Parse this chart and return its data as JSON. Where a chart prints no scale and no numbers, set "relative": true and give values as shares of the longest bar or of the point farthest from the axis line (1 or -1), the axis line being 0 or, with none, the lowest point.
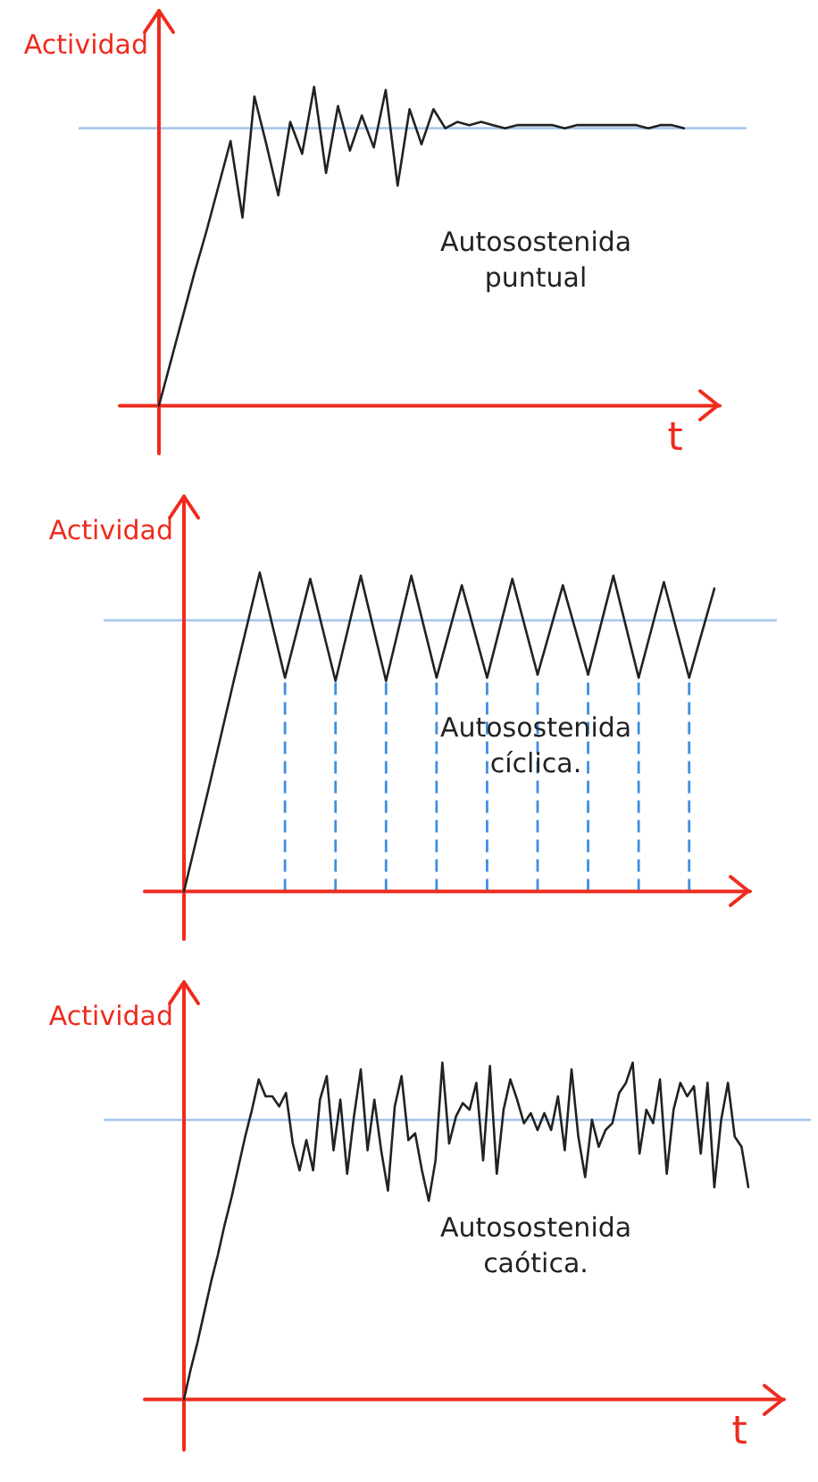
{
  "chart_data": [
    {
      "type": "line",
      "relative": true,
      "ylabel": "Actividad",
      "xlabel": "t",
      "categories": [
        null,
        null,
        null,
        null,
        null,
        null,
        null,
        null,
        null,
        null,
        null,
        null,
        null,
        null,
        null,
        null,
        null,
        null,
        null,
        null,
        null,
        null,
        null,
        null,
        null,
        null,
        null,
        null,
        null,
        null,
        null,
        null,
        null,
        null,
        null,
        null,
        null,
        null,
        null,
        null,
        null,
        null,
        null,
        null,
        null
      ],
      "series": [
        {
          "color": "#222222",
          "values": [
            0,
            0.14,
            0.28,
            0.42,
            0.55,
            0.69,
            0.83,
            0.59,
            0.97,
            0.82,
            0.66,
            0.89,
            0.79,
            1,
            0.73,
            0.94,
            0.8,
            0.91,
            0.81,
            0.99,
            0.69,
            0.93,
            0.82,
            0.93,
            0.87,
            0.89,
            0.88,
            0.89,
            0.88,
            0.87,
            0.88,
            0.88,
            0.88,
            0.88,
            0.87,
            0.88,
            0.88,
            0.88,
            0.88,
            0.88,
            0.88,
            0.87,
            0.88,
            0.88,
            0.87
          ]
        }
      ],
      "ref_lines": [
        {
          "axis": "y",
          "value": 0.87,
          "color": "#a9c9ee"
        }
      ],
      "annotations": [
        "Autosostenida puntual"
      ]
    },
    {
      "type": "line",
      "relative": true,
      "ylabel": "Actividad",
      "categories": [
        null,
        null,
        null,
        null,
        null,
        null,
        null,
        null,
        null,
        null,
        null,
        null,
        null,
        null,
        null,
        null,
        null,
        null,
        null,
        null,
        null,
        null
      ],
      "series": [
        {
          "color": "#222222",
          "values": [
            0,
            0.33,
            0.67,
            1,
            0.67,
            0.98,
            0.66,
            0.99,
            0.66,
            0.99,
            0.67,
            0.96,
            0.67,
            0.98,
            0.68,
            0.96,
            0.68,
            0.99,
            0.67,
            0.97,
            0.67,
            0.95
          ]
        }
      ],
      "ref_lines": [
        {
          "axis": "y",
          "value": 0.85,
          "color": "#a9c9ee"
        }
      ],
      "annotations": [
        "Autosostenida cíclica."
      ]
    },
    {
      "type": "line",
      "relative": true,
      "ylabel": "Actividad",
      "xlabel": "t",
      "categories": [
        null,
        null,
        null,
        null,
        null,
        null,
        null,
        null,
        null,
        null,
        null,
        null,
        null,
        null,
        null,
        null,
        null,
        null,
        null,
        null,
        null,
        null,
        null,
        null,
        null,
        null,
        null,
        null,
        null,
        null,
        null,
        null,
        null,
        null,
        null,
        null,
        null,
        null,
        null,
        null,
        null,
        null,
        null,
        null,
        null,
        null,
        null,
        null,
        null,
        null,
        null,
        null,
        null,
        null,
        null,
        null,
        null,
        null,
        null,
        null,
        null,
        null,
        null,
        null,
        null,
        null,
        null,
        null,
        null,
        null,
        null,
        null,
        null,
        null,
        null,
        null,
        null,
        null,
        null,
        null,
        null,
        null,
        null,
        null
      ],
      "series": [
        {
          "color": "#222222",
          "values": [
            0,
            0.09,
            0.17,
            0.26,
            0.35,
            0.43,
            0.52,
            0.6,
            0.69,
            0.78,
            0.86,
            0.95,
            0.9,
            0.9,
            0.87,
            0.91,
            0.76,
            0.68,
            0.77,
            0.68,
            0.89,
            0.96,
            0.74,
            0.89,
            0.67,
            0.84,
            0.98,
            0.74,
            0.89,
            0.74,
            0.62,
            0.87,
            0.96,
            0.77,
            0.79,
            0.68,
            0.59,
            0.71,
            1,
            0.76,
            0.84,
            0.88,
            0.86,
            0.94,
            0.71,
            0.99,
            0.67,
            0.86,
            0.95,
            0.89,
            0.82,
            0.85,
            0.8,
            0.85,
            0.8,
            0.9,
            0.74,
            0.98,
            0.78,
            0.66,
            0.83,
            0.75,
            0.8,
            0.82,
            0.91,
            0.94,
            1,
            0.73,
            0.86,
            0.82,
            0.95,
            0.67,
            0.86,
            0.94,
            0.9,
            0.93,
            0.73,
            0.94,
            0.63,
            0.83,
            0.94,
            0.78,
            0.75,
            0.63
          ]
        }
      ],
      "ref_lines": [
        {
          "axis": "y",
          "value": 0.83,
          "color": "#a9c9ee"
        }
      ],
      "annotations": [
        "Autosostenida caótica."
      ]
    }
  ]
}
